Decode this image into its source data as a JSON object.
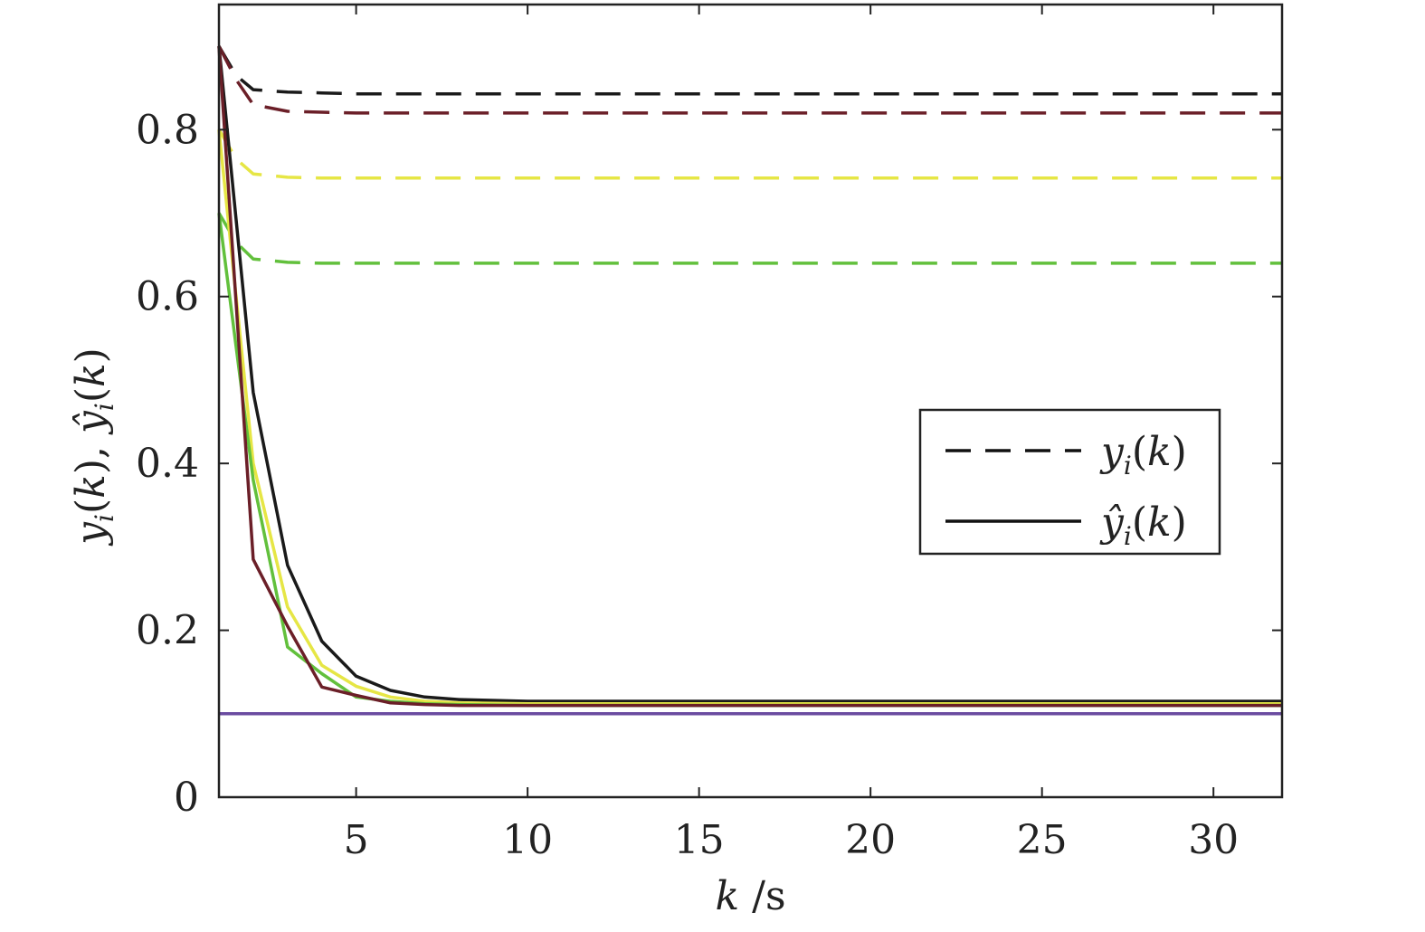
{
  "chart_data": {
    "type": "line",
    "xlabel": "k /s",
    "ylabel": "y_i(k), ŷ_i(k)",
    "xlim": [
      1,
      32
    ],
    "ylim": [
      0,
      0.95
    ],
    "x_ticks": [
      5,
      10,
      15,
      20,
      25,
      30
    ],
    "x_tick_labels": [
      "5",
      "10",
      "15",
      "20",
      "25",
      "30"
    ],
    "y_ticks": [
      0,
      0.2,
      0.4,
      0.6,
      0.8
    ],
    "y_tick_labels": [
      "0",
      "0.2",
      "0.4",
      "0.6",
      "0.8"
    ],
    "grid": false,
    "legend_position": "center-right",
    "legend": [
      {
        "label": "y_i(k)",
        "style": "dashed",
        "color": "#111111"
      },
      {
        "label": "ŷ_i(k)",
        "style": "solid",
        "color": "#111111"
      }
    ],
    "series": [
      {
        "style": "dashed",
        "color": "#1a1a1a",
        "x": [
          1,
          1.5,
          2,
          3,
          4,
          5,
          6,
          8,
          10,
          15,
          20,
          25,
          32
        ],
        "values": [
          0.9,
          0.865,
          0.848,
          0.845,
          0.844,
          0.843,
          0.843,
          0.843,
          0.843,
          0.843,
          0.843,
          0.843,
          0.843
        ]
      },
      {
        "style": "dashed",
        "color": "#6b1f28",
        "x": [
          1,
          1.5,
          2,
          3,
          4,
          5,
          6,
          8,
          10,
          15,
          20,
          25,
          32
        ],
        "values": [
          0.9,
          0.86,
          0.83,
          0.822,
          0.821,
          0.82,
          0.82,
          0.82,
          0.82,
          0.82,
          0.82,
          0.82,
          0.82
        ]
      },
      {
        "style": "dashed",
        "color": "#e6e645",
        "x": [
          1,
          1.5,
          2,
          3,
          4,
          5,
          6,
          8,
          10,
          15,
          20,
          25,
          32
        ],
        "values": [
          0.8,
          0.765,
          0.747,
          0.743,
          0.742,
          0.742,
          0.742,
          0.742,
          0.742,
          0.742,
          0.742,
          0.742,
          0.742
        ]
      },
      {
        "style": "dashed",
        "color": "#62c03c",
        "x": [
          1,
          1.5,
          2,
          3,
          4,
          5,
          6,
          8,
          10,
          15,
          20,
          25,
          32
        ],
        "values": [
          0.7,
          0.665,
          0.645,
          0.641,
          0.64,
          0.64,
          0.64,
          0.64,
          0.64,
          0.64,
          0.64,
          0.64,
          0.64
        ]
      },
      {
        "style": "solid",
        "color": "#1a1a1a",
        "x": [
          1,
          2,
          3,
          4,
          5,
          6,
          7,
          8,
          10,
          15,
          20,
          25,
          32
        ],
        "values": [
          0.9,
          0.485,
          0.278,
          0.187,
          0.145,
          0.128,
          0.12,
          0.117,
          0.115,
          0.115,
          0.115,
          0.115,
          0.115
        ]
      },
      {
        "style": "solid",
        "color": "#e6e645",
        "x": [
          1,
          2,
          3,
          4,
          5,
          6,
          7,
          8,
          10,
          15,
          20,
          25,
          32
        ],
        "values": [
          0.8,
          0.4,
          0.228,
          0.158,
          0.133,
          0.12,
          0.115,
          0.113,
          0.112,
          0.112,
          0.112,
          0.112,
          0.112
        ]
      },
      {
        "style": "solid",
        "color": "#62c03c",
        "x": [
          1,
          2,
          3,
          4,
          5,
          6,
          7,
          8,
          10,
          15,
          20,
          25,
          32
        ],
        "values": [
          0.7,
          0.38,
          0.18,
          0.148,
          0.12,
          0.115,
          0.112,
          0.111,
          0.11,
          0.11,
          0.11,
          0.11,
          0.11
        ]
      },
      {
        "style": "solid",
        "color": "#6b1f28",
        "x": [
          1,
          2,
          3,
          4,
          5,
          6,
          7,
          8,
          10,
          15,
          20,
          25,
          32
        ],
        "values": [
          0.9,
          0.285,
          0.205,
          0.132,
          0.122,
          0.113,
          0.111,
          0.11,
          0.11,
          0.11,
          0.11,
          0.11,
          0.11
        ]
      },
      {
        "style": "solid",
        "color": "#6a4ba0",
        "x": [
          1,
          32
        ],
        "values": [
          0.1,
          0.1
        ]
      }
    ]
  }
}
